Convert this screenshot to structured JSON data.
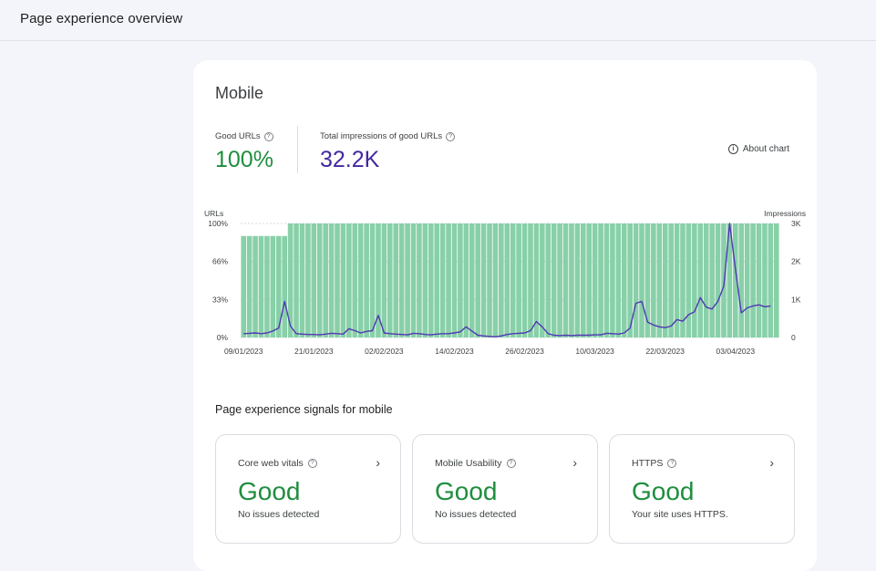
{
  "page": {
    "title": "Page experience overview"
  },
  "mobile": {
    "title": "Mobile",
    "good_urls": {
      "label": "Good URLs",
      "value": "100%"
    },
    "impressions": {
      "label": "Total impressions of good URLs",
      "value": "32.2K"
    },
    "about_chart": "About chart"
  },
  "chart_data": {
    "type": "bar",
    "left_axis_title": "URLs",
    "right_axis_title": "Impressions",
    "left_ticks": [
      "100%",
      "66%",
      "33%",
      "0%"
    ],
    "right_ticks": [
      "3K",
      "2K",
      "1K",
      "0"
    ],
    "x_ticks": [
      "09/01/2023",
      "21/01/2023",
      "02/02/2023",
      "14/02/2023",
      "26/02/2023",
      "10/03/2023",
      "22/03/2023",
      "03/04/2023"
    ],
    "ylim_left": [
      0,
      100
    ],
    "ylim_right": [
      0,
      3000
    ],
    "series": [
      {
        "name": "Good URLs",
        "unit": "%",
        "values": [
          89,
          89,
          89,
          89,
          89,
          89,
          89,
          89,
          100,
          100,
          100,
          100,
          100,
          100,
          100,
          100,
          100,
          100,
          100,
          100,
          100,
          100,
          100,
          100,
          100,
          100,
          100,
          100,
          100,
          100,
          100,
          100,
          100,
          100,
          100,
          100,
          100,
          100,
          100,
          100,
          100,
          100,
          100,
          100,
          100,
          100,
          100,
          100,
          100,
          100,
          100,
          100,
          100,
          100,
          100,
          100,
          100,
          100,
          100,
          100,
          100,
          100,
          100,
          100,
          100,
          100,
          100,
          100,
          100,
          100,
          100,
          100,
          100,
          100,
          100,
          100,
          100,
          100,
          100,
          100,
          100,
          100,
          100,
          100,
          100,
          100,
          100,
          100,
          100,
          100,
          100,
          100
        ]
      },
      {
        "name": "Impressions",
        "values": [
          100,
          110,
          120,
          100,
          120,
          170,
          250,
          950,
          300,
          100,
          90,
          80,
          80,
          70,
          90,
          110,
          100,
          90,
          230,
          180,
          120,
          160,
          180,
          580,
          120,
          100,
          90,
          80,
          70,
          110,
          100,
          80,
          70,
          90,
          100,
          100,
          120,
          150,
          280,
          170,
          60,
          40,
          30,
          20,
          40,
          80,
          100,
          110,
          120,
          180,
          420,
          280,
          100,
          60,
          50,
          60,
          50,
          60,
          60,
          60,
          70,
          70,
          110,
          100,
          90,
          120,
          250,
          900,
          950,
          400,
          330,
          280,
          260,
          300,
          470,
          430,
          600,
          680,
          1050,
          800,
          750,
          950,
          1350,
          3000,
          1800,
          650,
          780,
          830,
          860,
          810,
          830
        ]
      }
    ],
    "grid": true
  },
  "signals": {
    "title": "Page experience signals for mobile",
    "items": [
      {
        "name": "Core web vitals",
        "status": "Good",
        "desc": "No issues detected"
      },
      {
        "name": "Mobile Usability",
        "status": "Good",
        "desc": "No issues detected"
      },
      {
        "name": "HTTPS",
        "status": "Good",
        "desc": "Your site uses HTTPS."
      }
    ]
  },
  "colors": {
    "bar": "#88d0a8",
    "line": "#5138b3",
    "good": "#1e8e3e",
    "impressions": "#4527a0"
  }
}
